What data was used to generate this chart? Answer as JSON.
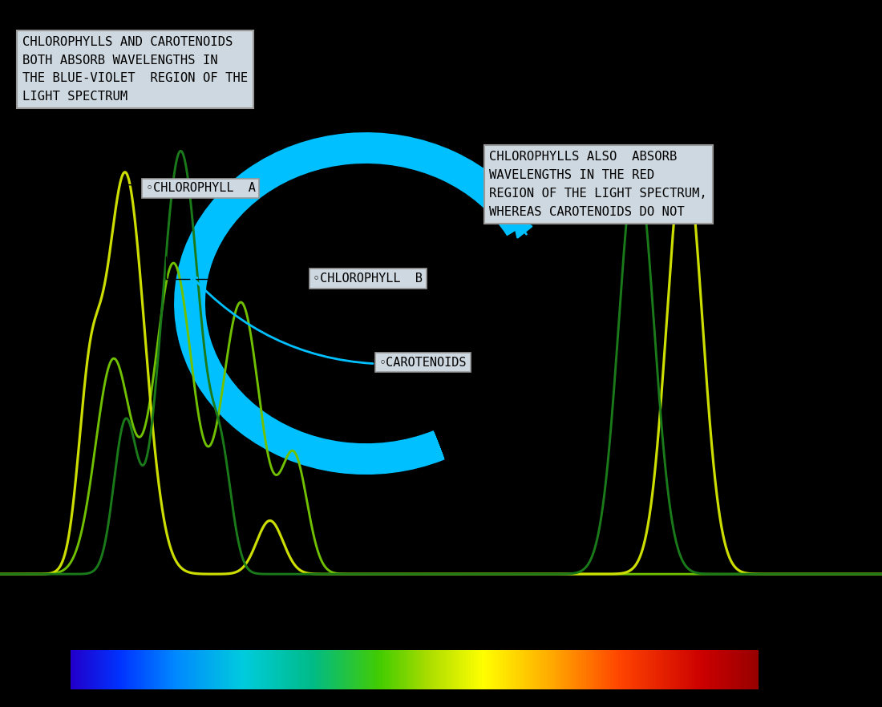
{
  "background_color": "#000000",
  "fig_width": 11.0,
  "fig_height": 8.82,
  "annotation_box1": "CHLOROPHYLLS AND CAROTENOIDS\nBOTH ABSORB WAVELENGTHS IN\nTHE BLUE-VIOLET  REGION OF THE\nLIGHT SPECTRUM",
  "annotation_box2": "CHLOROPHYLLS ALSO  ABSORB\nWAVELENGTHS IN THE RED\nREGION OF THE LIGHT SPECTRUM,\nWHEREAS CAROTENOIDS DO NOT",
  "label_chl_a": "◦CHLOROPHYLL  A",
  "label_chl_b": "◦CHLOROPHYLL  B",
  "label_carotenoids": "◦CAROTENOIDS",
  "font_family": "monospace",
  "arrow_color": "#00c0ff",
  "line_color_chl_a": "#ccdd00",
  "line_color_chl_b": "#1a7a1a",
  "line_color_carotenoids": "#70c000",
  "text_box_bg": "#ced8e0",
  "text_box_edge": "#999999"
}
